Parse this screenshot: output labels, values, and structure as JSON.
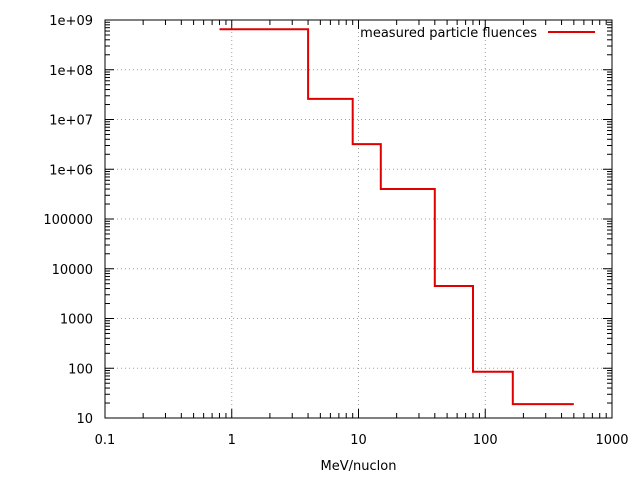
{
  "chart_data": {
    "type": "line",
    "title": "",
    "xlabel": "MeV/nuclon",
    "ylabel": "",
    "x_scale": "log",
    "y_scale": "log",
    "xlim": [
      0.1,
      1000
    ],
    "ylim": [
      10,
      1000000000
    ],
    "x_ticks": [
      "0.1",
      "1",
      "10",
      "100",
      "1000"
    ],
    "y_ticks": [
      "10",
      "100",
      "1000",
      "10000",
      "100000",
      "1e+06",
      "1e+07",
      "1e+08",
      "1e+09"
    ],
    "grid": true,
    "legend_position": "top-right",
    "series": [
      {
        "name": "measured particle fluences",
        "color": "#e00000",
        "step": "post",
        "x": [
          0.8,
          4,
          9,
          15,
          40,
          80,
          165,
          500
        ],
        "y": [
          650000000,
          26000000,
          3200000,
          400000,
          4500,
          85,
          19,
          19
        ]
      }
    ]
  }
}
